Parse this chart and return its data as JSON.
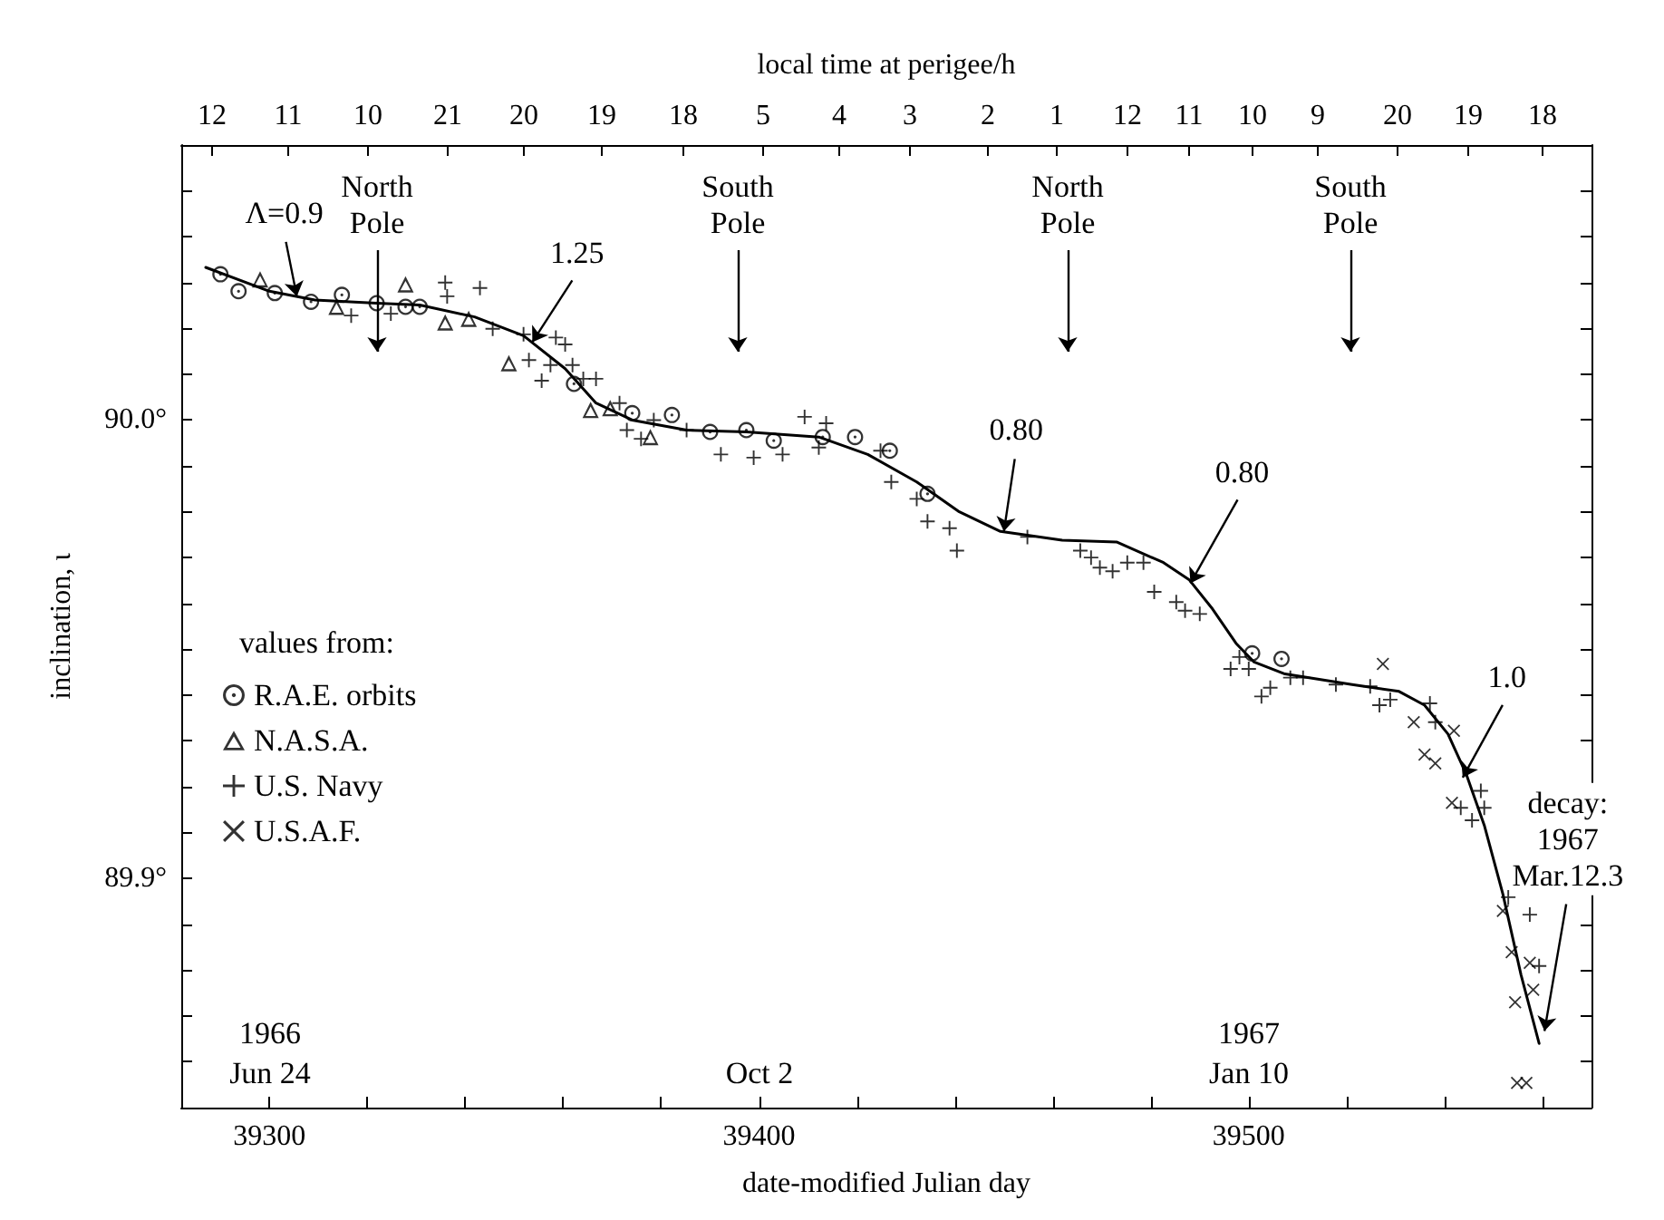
{
  "chart_data": {
    "type": "scatter",
    "xlabel": "date-modified Julian day",
    "ylabel": "inclination, ι",
    "x2label": "local time at perigee/h",
    "legend_title": "values from:",
    "legend": "left",
    "grid": false,
    "xlim": [
      39282,
      39570
    ],
    "ylim": [
      89.85,
      90.06
    ],
    "xticks": [
      39300,
      {
        "value": 39320,
        "label": null
      },
      {
        "value": 39340,
        "label": null
      },
      {
        "value": 39360,
        "label": null
      },
      {
        "value": 39380,
        "label": null
      },
      39400,
      {
        "value": 39420,
        "label": null
      },
      {
        "value": 39440,
        "label": null
      },
      {
        "value": 39460,
        "label": null
      },
      {
        "value": 39480,
        "label": null
      },
      39500,
      {
        "value": 39520,
        "label": null
      },
      {
        "value": 39540,
        "label": null
      },
      {
        "value": 39560,
        "label": null
      }
    ],
    "yticks": [
      {
        "value": 89.85,
        "label": null
      },
      {
        "value": 89.86,
        "label": null
      },
      {
        "value": 89.87,
        "label": null
      },
      {
        "value": 89.88,
        "label": null
      },
      {
        "value": 89.89,
        "label": null
      },
      {
        "value": 89.9,
        "label": "89.9°"
      },
      {
        "value": 89.91,
        "label": null
      },
      {
        "value": 89.92,
        "label": null
      },
      {
        "value": 89.93,
        "label": null
      },
      {
        "value": 89.94,
        "label": null
      },
      {
        "value": 89.95,
        "label": null
      },
      {
        "value": 89.96,
        "label": null
      },
      {
        "value": 89.97,
        "label": null
      },
      {
        "value": 89.98,
        "label": null
      },
      {
        "value": 89.99,
        "label": null
      },
      {
        "value": 90.0,
        "label": "90.0°"
      },
      {
        "value": 90.01,
        "label": null
      },
      {
        "value": 90.02,
        "label": null
      },
      {
        "value": 90.03,
        "label": null
      },
      {
        "value": 90.04,
        "label": null
      },
      {
        "value": 90.05,
        "label": null
      },
      {
        "value": 90.06,
        "label": null
      }
    ],
    "annotations": [
      {
        "text": "Λ=0.9",
        "x": 39305.6,
        "y": 90.027
      },
      {
        "text": "1.25",
        "x": 39353.7,
        "y": 90.017
      },
      {
        "text": "0.80",
        "x": 39450,
        "y": 89.9757
      },
      {
        "text": "0.80",
        "x": 39488.1,
        "y": 89.9644
      },
      {
        "text": "1.0",
        "x": 39543.7,
        "y": 89.922
      },
      {
        "text": "decay:\n1967\nMar.12.3",
        "x": 39560.4,
        "y": 89.8667
      },
      "North\nPole",
      "South\nPole",
      "North\nPole",
      "South\nPole",
      "1966\nJun 24",
      "Oct 2",
      "1967\nJan 10",
      "12",
      "11",
      "10",
      "21",
      "20",
      "19",
      "18",
      "5",
      "4",
      "3",
      "2",
      "1",
      "12",
      "11",
      "10",
      "9",
      "20",
      "19",
      "18"
    ],
    "series": [
      {
        "type": "line",
        "color": "#000000",
        "marker": "none",
        "line_style": "solid",
        "x": [
          39287.0,
          39300,
          39309.3,
          39321.9,
          39330.7,
          39341.9,
          39351.9,
          39360.4,
          39366.7,
          39374.1,
          39385.2,
          39397.4,
          39412.2,
          39422.2,
          39432.2,
          39440.7,
          39449.3,
          39461.9,
          39473.0,
          39482.6,
          39487.8,
          39492.6,
          39497.4,
          39501.1,
          39507.4,
          39521.1,
          39530.7,
          39535.9,
          39540.7,
          39544.4,
          39548.1,
          39551.9,
          39555.6,
          39559.3
        ],
        "values": [
          90.0333,
          90.0281,
          90.0262,
          90.0255,
          90.0251,
          90.0225,
          90.0184,
          90.0112,
          90.0037,
          90.0,
          89.9978,
          89.9974,
          89.9963,
          89.9925,
          89.9865,
          89.9801,
          89.9757,
          89.9738,
          89.9734,
          89.9689,
          89.9652,
          89.9588,
          89.9513,
          89.9472,
          89.9446,
          89.9423,
          89.9408,
          89.9378,
          89.9315,
          89.9228,
          89.9116,
          89.8966,
          89.879,
          89.864
        ]
      },
      {
        "name": "R.A.E. orbits",
        "color": "#000000",
        "marker": "circle",
        "x": [
          39290.0,
          39293.7,
          39301.1,
          39308.5,
          39314.8,
          39321.9,
          39327.8,
          39330.7,
          39362.2,
          39374.1,
          39382.2,
          39390.0,
          39397.4,
          39403.0,
          39413.0,
          39419.6,
          39426.7,
          39434.4,
          39500.7,
          39506.7
        ],
        "values": [
          90.0318,
          90.0281,
          90.0277,
          90.0258,
          90.0273,
          90.0255,
          90.0247,
          90.0247,
          90.0079,
          90.0015,
          90.0011,
          89.9974,
          89.9978,
          89.9955,
          89.9963,
          89.9963,
          89.9933,
          89.9839,
          89.9491,
          89.9479
        ]
      },
      {
        "name": "N.A.S.A.",
        "color": "#000000",
        "marker": "triangle",
        "x": [
          39298.1,
          39313.7,
          39327.8,
          39335.9,
          39340.7,
          39348.9,
          39365.6,
          39369.6,
          39377.8
        ],
        "values": [
          90.0307,
          90.0247,
          90.0296,
          90.0213,
          90.0221,
          90.0124,
          90.0022,
          90.0026,
          89.9963
        ]
      },
      {
        "name": "U.S. Navy",
        "color": "#000000",
        "marker": "plus",
        "x": [
          39316.7,
          39324.8,
          39335.9,
          39336.3,
          39343.0,
          39345.6,
          39351.9,
          39358.5,
          39360.4,
          39353.0,
          39357.4,
          39355.6,
          39361.9,
          39364.1,
          39366.7,
          39371.5,
          39373.0,
          39375.9,
          39378.5,
          39385.2,
          39392.2,
          39398.9,
          39404.8,
          39409.3,
          39413.7,
          39412.2,
          39424.8,
          39427.0,
          39432.2,
          39434.4,
          39438.9,
          39440.4,
          39454.8,
          39465.6,
          39467.8,
          39469.6,
          39472.2,
          39475.2,
          39478.5,
          39480.7,
          39485.2,
          39487.0,
          39490.0,
          39498.1,
          39496.3,
          39500.0,
          39502.6,
          39504.4,
          39508.5,
          39511.1,
          39517.8,
          39524.8,
          39526.7,
          39528.9,
          39537.0,
          39538.1,
          39543.3,
          39545.6,
          39547.4,
          39548.1,
          39553.0,
          39557.4,
          39559.3
        ],
        "values": [
          90.0228,
          90.0232,
          90.03,
          90.027,
          90.0288,
          90.0199,
          90.0187,
          90.018,
          90.0165,
          90.0131,
          90.012,
          90.0086,
          90.012,
          90.009,
          90.009,
          90.0037,
          89.9978,
          89.9959,
          90.0,
          89.9978,
          89.9925,
          89.9918,
          89.9925,
          90.0007,
          89.9993,
          89.994,
          89.9933,
          89.9865,
          89.9828,
          89.9779,
          89.9764,
          89.9715,
          89.9745,
          89.9715,
          89.97,
          89.9678,
          89.967,
          89.9689,
          89.9689,
          89.9625,
          89.9603,
          89.9584,
          89.9577,
          89.9483,
          89.9457,
          89.9457,
          89.9397,
          89.9416,
          89.9438,
          89.9438,
          89.9423,
          89.9419,
          89.9378,
          89.939,
          89.9382,
          89.9341,
          89.9154,
          89.9127,
          89.9191,
          89.9154,
          89.8959,
          89.8921,
          89.8809
        ]
      },
      {
        "name": "U.S.A.F.",
        "color": "#000000",
        "marker": "cross",
        "x": [
          39527.4,
          39533.7,
          39535.9,
          39538.1,
          39541.9,
          39541.5,
          39551.9,
          39553.7,
          39554.4,
          39557.4,
          39558.1,
          39554.8,
          39556.7
        ],
        "values": [
          89.9468,
          89.9341,
          89.927,
          89.9251,
          89.9322,
          89.9165,
          89.8929,
          89.8839,
          89.873,
          89.8816,
          89.8757,
          89.8554,
          89.8554
        ]
      }
    ]
  }
}
